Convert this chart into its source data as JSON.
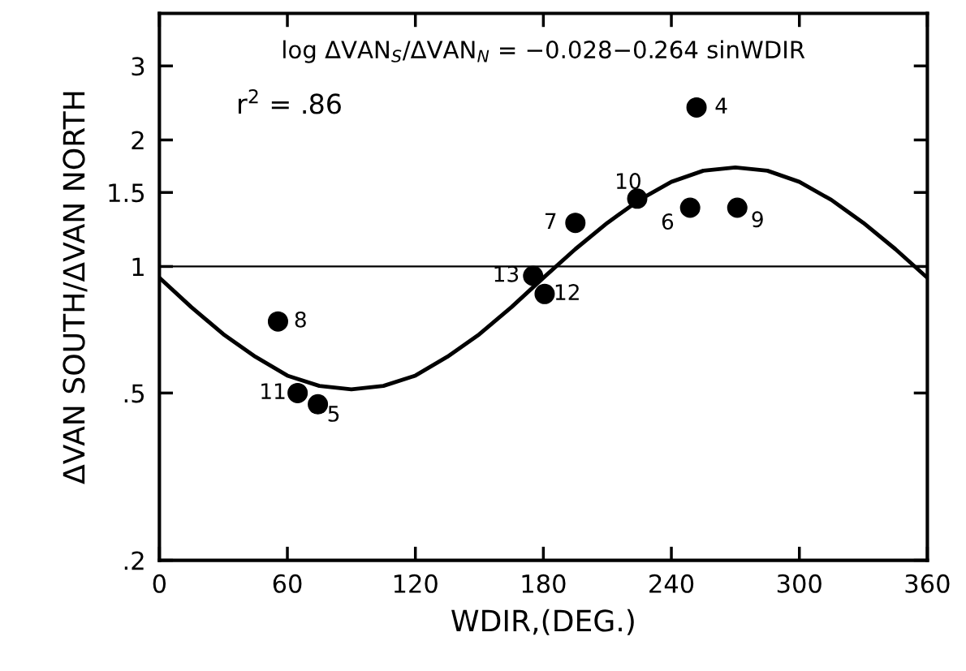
{
  "chart_data": {
    "type": "scatter",
    "xlabel": "WDIR,(DEG.)",
    "ylabel": "ΔVAN SOUTH/ΔVAN NORTH",
    "log": "y",
    "xlim": [
      0,
      360
    ],
    "xticks": [
      0,
      60,
      120,
      180,
      240,
      300,
      360
    ],
    "ylim": [
      0.2,
      4.0
    ],
    "yticks": [
      {
        "value": 0.2,
        "label": ".2"
      },
      {
        "value": 0.5,
        "label": ".5"
      },
      1,
      1.5,
      2,
      3
    ],
    "grid": false,
    "marker": "circle",
    "annotations": [
      "log ΔVAN$_{S}$/ΔVAN$_{N}$ = −0.028−0.264 sinWDIR",
      "r$^{2}$ = .86",
      {
        "text": "4",
        "x": 251.8,
        "y": 2.39
      },
      {
        "text": "10",
        "x": 224,
        "y": 1.45
      },
      {
        "text": "6",
        "x": 248.8,
        "y": 1.38
      },
      {
        "text": "9",
        "x": 270.9,
        "y": 1.38
      },
      {
        "text": "7",
        "x": 195,
        "y": 1.27
      },
      {
        "text": "13",
        "x": 175.2,
        "y": 0.95
      },
      {
        "text": "12",
        "x": 180.6,
        "y": 0.86
      },
      {
        "text": "8",
        "x": 55.6,
        "y": 0.74
      },
      {
        "text": "11",
        "x": 64.8,
        "y": 0.5
      },
      {
        "text": "5",
        "x": 74.3,
        "y": 0.47
      }
    ],
    "ref_lines": [
      {
        "axis": "y",
        "value": 1,
        "color": "#000000"
      }
    ],
    "series": [
      {
        "color": "#000000",
        "x": [
          251.8,
          224,
          248.8,
          270.9,
          195,
          175.2,
          180.6,
          55.6,
          64.8,
          74.3
        ],
        "values": [
          2.39,
          1.45,
          1.38,
          1.38,
          1.27,
          0.95,
          0.86,
          0.74,
          0.5,
          0.47
        ]
      },
      {
        "type": "line",
        "color": "#000000",
        "line_style": "solid",
        "marker": "none",
        "x": [
          0,
          15,
          30,
          45,
          60,
          75,
          90,
          105,
          120,
          135,
          150,
          165,
          180,
          195,
          210,
          225,
          240,
          255,
          270,
          285,
          300,
          315,
          330,
          345,
          360
        ],
        "values": [
          0.94,
          0.8,
          0.69,
          0.61,
          0.55,
          0.52,
          0.51,
          0.52,
          0.55,
          0.61,
          0.69,
          0.8,
          0.94,
          1.1,
          1.27,
          1.44,
          1.59,
          1.69,
          1.72,
          1.69,
          1.59,
          1.44,
          1.27,
          1.1,
          0.94
        ]
      }
    ]
  }
}
